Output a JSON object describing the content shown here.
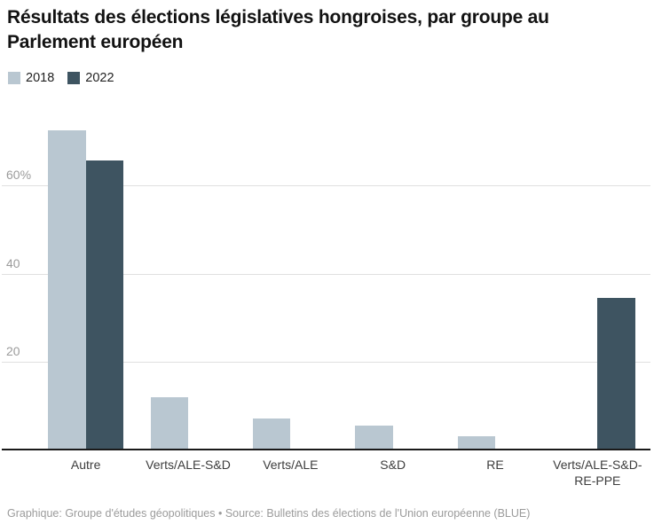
{
  "header": {
    "title": "Résultats des élections législatives hongroises, par groupe au Parlement européen"
  },
  "chart_data": {
    "type": "bar",
    "grouped": true,
    "categories": [
      "Autre",
      "Verts/ALE-S&D",
      "Verts/ALE",
      "S&D",
      "RE",
      "Verts/ALE-S&D-RE-PPE"
    ],
    "series": [
      {
        "name": "2018",
        "color": "#b9c7d1",
        "values": [
          72.6,
          11.9,
          7.1,
          5.4,
          3.1,
          0
        ]
      },
      {
        "name": "2022",
        "color": "#3e5461",
        "values": [
          65.6,
          0,
          0,
          0,
          0,
          34.4
        ]
      }
    ],
    "title": "Résultats des élections législatives hongroises, par groupe au Parlement européen",
    "xlabel": "",
    "ylabel": "",
    "ylim": [
      0,
      80
    ],
    "yticks": [
      {
        "value": 20,
        "label": "20"
      },
      {
        "value": 40,
        "label": "40"
      },
      {
        "value": 60,
        "label": "60%"
      }
    ],
    "grid": true,
    "legend_position": "top-left"
  },
  "colors": {
    "series_2018": "#b9c7d1",
    "series_2022": "#3e5461",
    "gridline": "#e0e0e0",
    "axis_line": "#1a1a1a",
    "tick_label": "#9b9b9b",
    "category_label": "#3d3d3d",
    "title_text": "#121212",
    "footer_text": "#9b9b9b",
    "background": "#ffffff"
  },
  "footer": {
    "credit": "Graphique: Groupe d'études géopolitiques • Source: Bulletins des élections de l'Union européenne (BLUE)"
  }
}
